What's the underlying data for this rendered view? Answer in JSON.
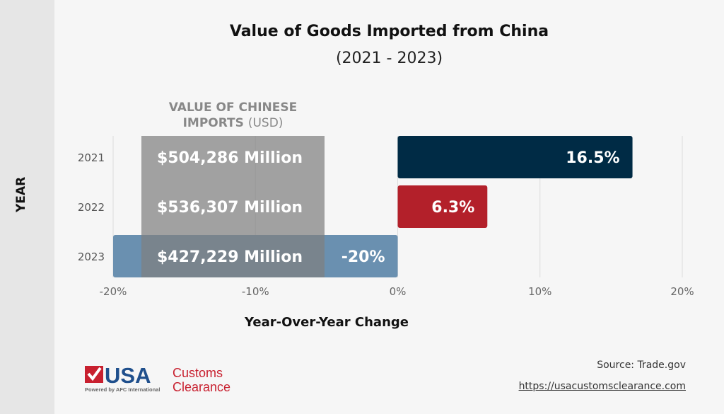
{
  "chart_data": {
    "type": "bar",
    "orientation": "horizontal",
    "title": "Value of Goods Imported from China",
    "subtitle": "(2021 - 2023)",
    "xlabel": "Year-Over-Year Change",
    "ylabel": "YEAR",
    "categories": [
      "2021",
      "2022",
      "2023"
    ],
    "values": [
      16.5,
      6.3,
      -20
    ],
    "value_labels": [
      "16.5%",
      "6.3%",
      "-20%"
    ],
    "bar_colors": [
      "#002b45",
      "#b3202a",
      "#6a90b0"
    ],
    "xlim": [
      -20,
      20
    ],
    "xticks": [
      -20,
      -10,
      0,
      10,
      20
    ],
    "xtick_labels": [
      "-20%",
      "-10%",
      "0%",
      "10%",
      "20%"
    ],
    "grid": "vertical",
    "overlay": {
      "title_bold": "VALUE OF CHINESE IMPORTS",
      "title_unit": "(USD)",
      "values": [
        "$504,286 Million",
        "$536,307 Million",
        "$427,229 Million"
      ]
    }
  },
  "footer": {
    "source": "Source: Trade.gov",
    "url": "https://usacustomsclearance.com",
    "logo_text": "USA Customs Clearance",
    "logo_tagline": "Powered by AFC International"
  }
}
